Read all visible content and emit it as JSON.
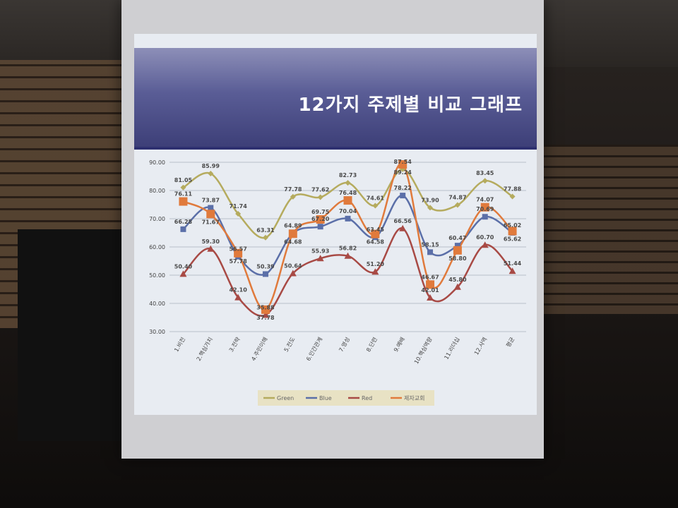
{
  "slide": {
    "title": "12가지 주제별 비교 그래프"
  },
  "chart_data": {
    "type": "line",
    "title": "12가지 주제별 비교 그래프",
    "categories": [
      "1.비전",
      "2.핵심가치",
      "3.전략",
      "4.주민이해",
      "5.전도",
      "6.인간관계",
      "7.영성",
      "8.단련",
      "9.예배",
      "10.핵심역량",
      "11.리더십",
      "12.사역",
      "평균"
    ],
    "ylim": [
      30,
      90
    ],
    "yticks": [
      "30.00",
      "40.00",
      "50.00",
      "60.00",
      "70.00",
      "80.00",
      "90.00"
    ],
    "grid": true,
    "legend_position": "bottom",
    "series": [
      {
        "name": "Green",
        "color": "#b5ab5e",
        "marker": "diamond",
        "values": [
          81.05,
          85.99,
          71.74,
          63.31,
          77.78,
          77.62,
          82.73,
          74.61,
          87.54,
          73.9,
          74.87,
          83.45,
          77.88
        ]
      },
      {
        "name": "Blue",
        "color": "#5b6fa8",
        "marker": "square",
        "values": [
          66.28,
          73.87,
          56.57,
          50.39,
          64.89,
          67.2,
          70.04,
          63.45,
          78.22,
          58.15,
          60.47,
          70.69,
          65.02
        ]
      },
      {
        "name": "Red",
        "color": "#a84a45",
        "marker": "triangle",
        "values": [
          50.4,
          59.3,
          42.1,
          35.88,
          50.64,
          55.93,
          56.82,
          51.2,
          66.56,
          42.01,
          45.8,
          60.7,
          51.44
        ]
      },
      {
        "name": "제자교회",
        "color": "#e07a3c",
        "marker": "square",
        "values": [
          76.11,
          71.67,
          57.78,
          37.78,
          64.68,
          69.75,
          76.48,
          64.58,
          89.24,
          46.67,
          58.8,
          74.07,
          65.62
        ]
      }
    ]
  }
}
